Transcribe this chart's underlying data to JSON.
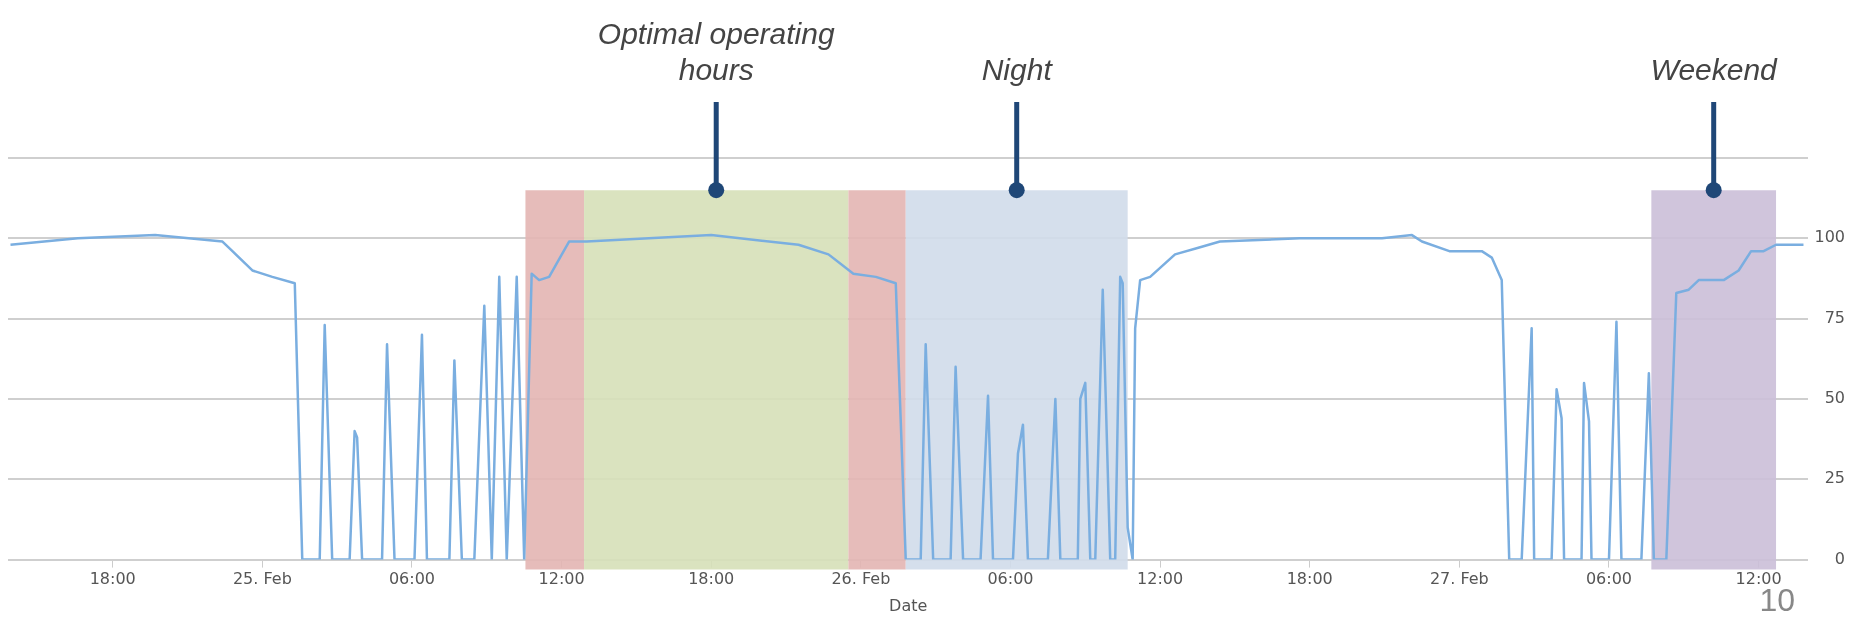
{
  "chart_data": {
    "type": "line",
    "xlabel": "Date",
    "annotations": [
      "10"
    ],
    "x": [
      "--02-24T13:54",
      "--02-24T16:36",
      "--02-24T19:42",
      "--02-24T22:24",
      "--02-24T22:48",
      "--02-24T23:36",
      "--02-25T00:24",
      "--02-25T01:18",
      "--02-25T01:36",
      "--02-25T02:18",
      "--02-25T02:30",
      "--02-25T02:48",
      "--02-25T03:30",
      "--02-25T03:42",
      "--02-25T03:48",
      "--02-25T04:00",
      "--02-25T04:48",
      "--02-25T05:00",
      "--02-25T05:18",
      "--02-25T06:06",
      "--02-25T06:24",
      "--02-25T06:36",
      "--02-25T07:30",
      "--02-25T07:42",
      "--02-25T08:00",
      "--02-25T08:30",
      "--02-25T08:54",
      "--02-25T09:12",
      "--02-25T09:30",
      "--02-25T09:48",
      "--02-25T10:12",
      "--02-25T10:30",
      "--02-25T10:48",
      "--02-25T11:06",
      "--02-25T11:30",
      "--02-25T12:18",
      "--02-25T13:00",
      "--02-25T18:00",
      "--02-25T21:30",
      "--02-25T22:42",
      "--02-25T23:42",
      "--02-26T00:36",
      "--02-26T01:24",
      "--02-26T01:48",
      "--02-26T02:24",
      "--02-26T02:36",
      "--02-26T02:54",
      "--02-26T03:36",
      "--02-26T03:48",
      "--02-26T04:06",
      "--02-26T04:48",
      "--02-26T05:06",
      "--02-26T05:18",
      "--02-26T06:06",
      "--02-26T06:18",
      "--02-26T06:30",
      "--02-26T06:42",
      "--02-26T07:30",
      "--02-26T07:48",
      "--02-26T08:00",
      "--02-26T08:42",
      "--02-26T08:48",
      "--02-26T09:00",
      "--02-26T09:12",
      "--02-26T09:24",
      "--02-26T09:42",
      "--02-26T10:00",
      "--02-26T10:12",
      "--02-26T10:24",
      "--02-26T10:30",
      "--02-26T10:42",
      "--02-26T10:54",
      "--02-26T11:00",
      "--02-26T11:12",
      "--02-26T11:36",
      "--02-26T12:36",
      "--02-26T13:30",
      "--02-26T14:24",
      "--02-26T17:36",
      "--02-26T20:54",
      "--02-26T22:06",
      "--02-26T22:30",
      "--02-26T23:36",
      "--02-27T00:54",
      "--02-27T01:18",
      "--02-27T01:42",
      "--02-27T02:00",
      "--02-27T02:30",
      "--02-27T02:54",
      "--02-27T03:00",
      "--02-27T03:42",
      "--02-27T03:54",
      "--02-27T04:06",
      "--02-27T04:12",
      "--02-27T04:54",
      "--02-27T05:00",
      "--02-27T05:12",
      "--02-27T05:18",
      "--02-27T06:00",
      "--02-27T06:18",
      "--02-27T06:30",
      "--02-27T07:18",
      "--02-27T07:36",
      "--02-27T07:48",
      "--02-27T08:18",
      "--02-27T08:42",
      "--02-27T09:12",
      "--02-27T09:36",
      "--02-27T10:36",
      "--02-27T11:12",
      "--02-27T11:42",
      "--02-27T12:12",
      "--02-27T12:42",
      "--02-27T13:48"
    ],
    "values": [
      98,
      100,
      101,
      99,
      96,
      90,
      88,
      86,
      0,
      0,
      73,
      0,
      0,
      40,
      38,
      0,
      0,
      67,
      0,
      0,
      70,
      0,
      0,
      62,
      0,
      0,
      79,
      0,
      88,
      0,
      88,
      0,
      89,
      87,
      88,
      99,
      99,
      101,
      98,
      95,
      89,
      88,
      86,
      0,
      0,
      67,
      0,
      0,
      60,
      0,
      0,
      51,
      0,
      0,
      33,
      42,
      0,
      0,
      50,
      0,
      0,
      50,
      55,
      0,
      0,
      84,
      0,
      0,
      88,
      86,
      10,
      0,
      72,
      87,
      88,
      95,
      97,
      99,
      100,
      100,
      101,
      99,
      96,
      96,
      94,
      87,
      0,
      0,
      72,
      0,
      0,
      53,
      44,
      0,
      0,
      55,
      43,
      0,
      0,
      74,
      0,
      0,
      58,
      0,
      0,
      83,
      84,
      87,
      87,
      90,
      96,
      96,
      98,
      98
    ],
    "color": "#7aaee0",
    "marker": "none",
    "line_style": "solid",
    "xlim": [
      "--02-24T13:48",
      "--02-27T14:00"
    ],
    "xticks": [
      {
        "value": "--02-24T18:00",
        "label": "18:00"
      },
      {
        "value": "--02-25",
        "label": "25. Feb"
      },
      {
        "value": "--02-25T06:00",
        "label": "06:00"
      },
      {
        "value": "--02-25T12:00",
        "label": "12:00"
      },
      {
        "value": "--02-25T18:00",
        "label": "18:00"
      },
      {
        "value": "--02-26",
        "label": "26. Feb"
      },
      {
        "value": "--02-26T06:00",
        "label": "06:00"
      },
      {
        "value": "--02-26T12:00",
        "label": "12:00"
      },
      {
        "value": "--02-26T18:00",
        "label": "18:00"
      },
      {
        "value": "--02-27",
        "label": "27. Feb"
      },
      {
        "value": "--02-27T06:00",
        "label": "06:00"
      },
      {
        "value": "--02-27T12:00",
        "label": "12:00"
      }
    ],
    "ylim": [
      0,
      125
    ],
    "yticks": [
      0,
      25,
      50,
      75,
      100,
      {
        "value": 125,
        "label": null
      }
    ],
    "grid": "y",
    "legend": false,
    "bands": [
      {
        "axis": "x",
        "from": "--02-25T10:33",
        "to": "--02-25T12:54",
        "color": "#e3b5b3"
      },
      {
        "axis": "x",
        "from": "--02-25T12:54",
        "to": "--02-25T23:30",
        "color": "#d6e0b8",
        "label": "Optimal operating hours"
      },
      {
        "axis": "x",
        "from": "--02-25T23:30",
        "to": "--02-26T01:48",
        "color": "#e3b5b3"
      },
      {
        "axis": "x",
        "from": "--02-26T01:48",
        "to": "--02-26T10:42",
        "color": "#d0dbea",
        "label": "Night"
      },
      {
        "axis": "x",
        "from": "--02-27T07:42",
        "to": "--02-27T12:42",
        "color": "#cbbfd8",
        "label": "Weekend"
      }
    ]
  }
}
